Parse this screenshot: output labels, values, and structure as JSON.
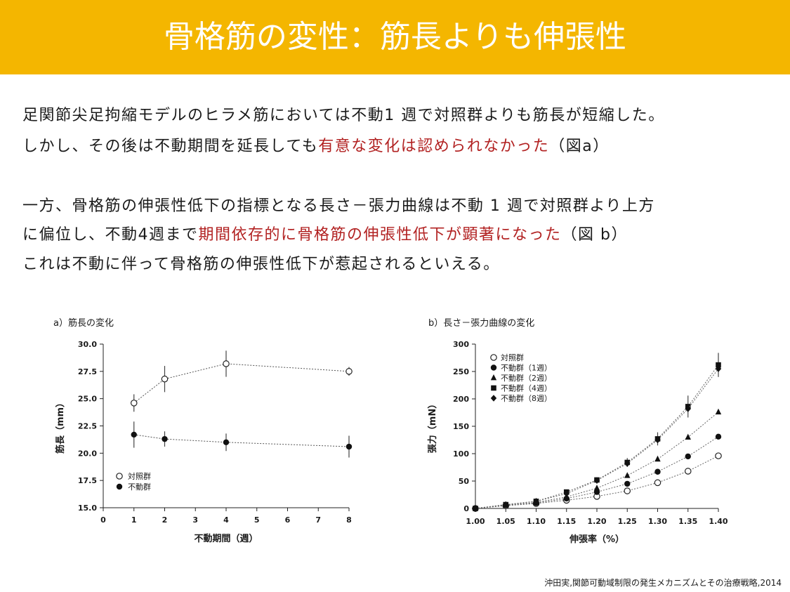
{
  "slide": {
    "title": "骨格筋の変性：筋長よりも伸張性",
    "p1": {
      "line1": "足関節尖足拘縮モデルのヒラメ筋においては不動1 週で対照群よりも筋長が短縮した。",
      "line2_a": "しかし、その後は不動期間を延長しても",
      "line2_red": "有意な変化は認められなかった",
      "line2_b": "（図a）"
    },
    "p2": {
      "line1": "一方、骨格筋の伸張性低下の指標となる長さ－張力曲線は不動 1 週で対照群より上方",
      "line2_a": "に偏位し、不動4週まで",
      "line2_red": "期間依存的に骨格筋の伸張性低下が顕著になった",
      "line2_b": "（図 b）",
      "line3": "これは不動に伴って骨格筋の伸張性低下が惹起されるといえる。"
    },
    "citation": "沖田実,関節可動域制限の発生メカニズムとその治療戦略,2014",
    "accent_color": "#f4b600",
    "highlight_color": "#b22222"
  },
  "chart_data": [
    {
      "type": "line",
      "title": "a）筋長の変化",
      "xlabel": "不動期間（週）",
      "ylabel": "筋長（mm）",
      "x_ticks": [
        0,
        1,
        2,
        3,
        4,
        5,
        6,
        7,
        8
      ],
      "y_ticks": [
        15.0,
        17.5,
        20.0,
        22.5,
        25.0,
        27.5,
        30.0
      ],
      "x_range": [
        0,
        8
      ],
      "ylim": [
        15.0,
        30.0
      ],
      "legend_position": "bottom-left",
      "series": [
        {
          "name": "対照群",
          "marker": "open-circle",
          "x": [
            1,
            2,
            4,
            8
          ],
          "values": [
            24.6,
            26.8,
            28.2,
            27.5
          ],
          "errors": [
            0.8,
            1.2,
            1.2,
            0.4
          ]
        },
        {
          "name": "不動群",
          "marker": "filled-circle",
          "x": [
            1,
            2,
            4,
            8
          ],
          "values": [
            21.7,
            21.3,
            21.0,
            20.6
          ],
          "errors": [
            1.2,
            0.7,
            0.8,
            1.0
          ]
        }
      ]
    },
    {
      "type": "line",
      "title": "b）長さ－張力曲線の変化",
      "xlabel": "伸張率（%）",
      "ylabel": "張力（mN）",
      "x": [
        1.0,
        1.05,
        1.1,
        1.15,
        1.2,
        1.25,
        1.3,
        1.35,
        1.4
      ],
      "x_ticks": [
        "1.00",
        "1.05",
        "1.10",
        "1.15",
        "1.20",
        "1.25",
        "1.30",
        "1.35",
        "1.40"
      ],
      "y_ticks": [
        0,
        50,
        100,
        150,
        200,
        250,
        300
      ],
      "ylim": [
        0,
        300
      ],
      "legend_position": "top-left",
      "series": [
        {
          "name": "対照群",
          "marker": "open-circle",
          "values": [
            0,
            5,
            9,
            15,
            22,
            32,
            47,
            68,
            96
          ]
        },
        {
          "name": "不動群（1週）",
          "marker": "filled-circle",
          "values": [
            0,
            6,
            10,
            18,
            30,
            45,
            67,
            95,
            131
          ]
        },
        {
          "name": "不動群（2週）",
          "marker": "triangle",
          "values": [
            0,
            6,
            11,
            21,
            37,
            60,
            90,
            130,
            176
          ]
        },
        {
          "name": "不動群（4週）",
          "marker": "square",
          "values": [
            0,
            7,
            13,
            30,
            52,
            84,
            127,
            186,
            262
          ],
          "errors": [
            0,
            1,
            2,
            3,
            4,
            8,
            12,
            20,
            22
          ]
        },
        {
          "name": "不動群（8週）",
          "marker": "diamond",
          "values": [
            0,
            7,
            13,
            27,
            51,
            82,
            125,
            182,
            255
          ]
        }
      ]
    }
  ]
}
